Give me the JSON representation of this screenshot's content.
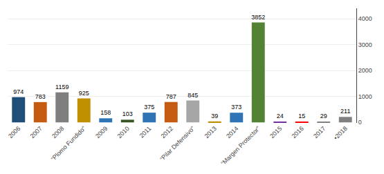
{
  "chart_data": {
    "type": "bar",
    "categories": [
      "2006",
      "2007",
      "2008",
      "“Plomo Fundido”",
      "2009",
      "2010",
      "2011",
      "2012",
      "“Pilar Defensivo”",
      "2013",
      "2014",
      "“Margen Protector”",
      "2015",
      "2016",
      "2017",
      "•2018"
    ],
    "values": [
      974,
      783,
      1159,
      925,
      158,
      103,
      375,
      787,
      845,
      39,
      373,
      3852,
      24,
      15,
      29,
      211
    ],
    "colors": [
      "#1F4E79",
      "#C55A11",
      "#7F7F7F",
      "#BF8F00",
      "#2F75B6",
      "#375623",
      "#2F75B6",
      "#C55A11",
      "#A6A6A6",
      "#BF8F00",
      "#2F75B6",
      "#548235",
      "#7030A0",
      "#FF0000",
      "#808080",
      "#808080"
    ],
    "ylim": [
      -20,
      4400
    ],
    "yticks": [
      0,
      1000,
      2000,
      3000,
      4000
    ],
    "grid": true,
    "data_labels": true
  }
}
